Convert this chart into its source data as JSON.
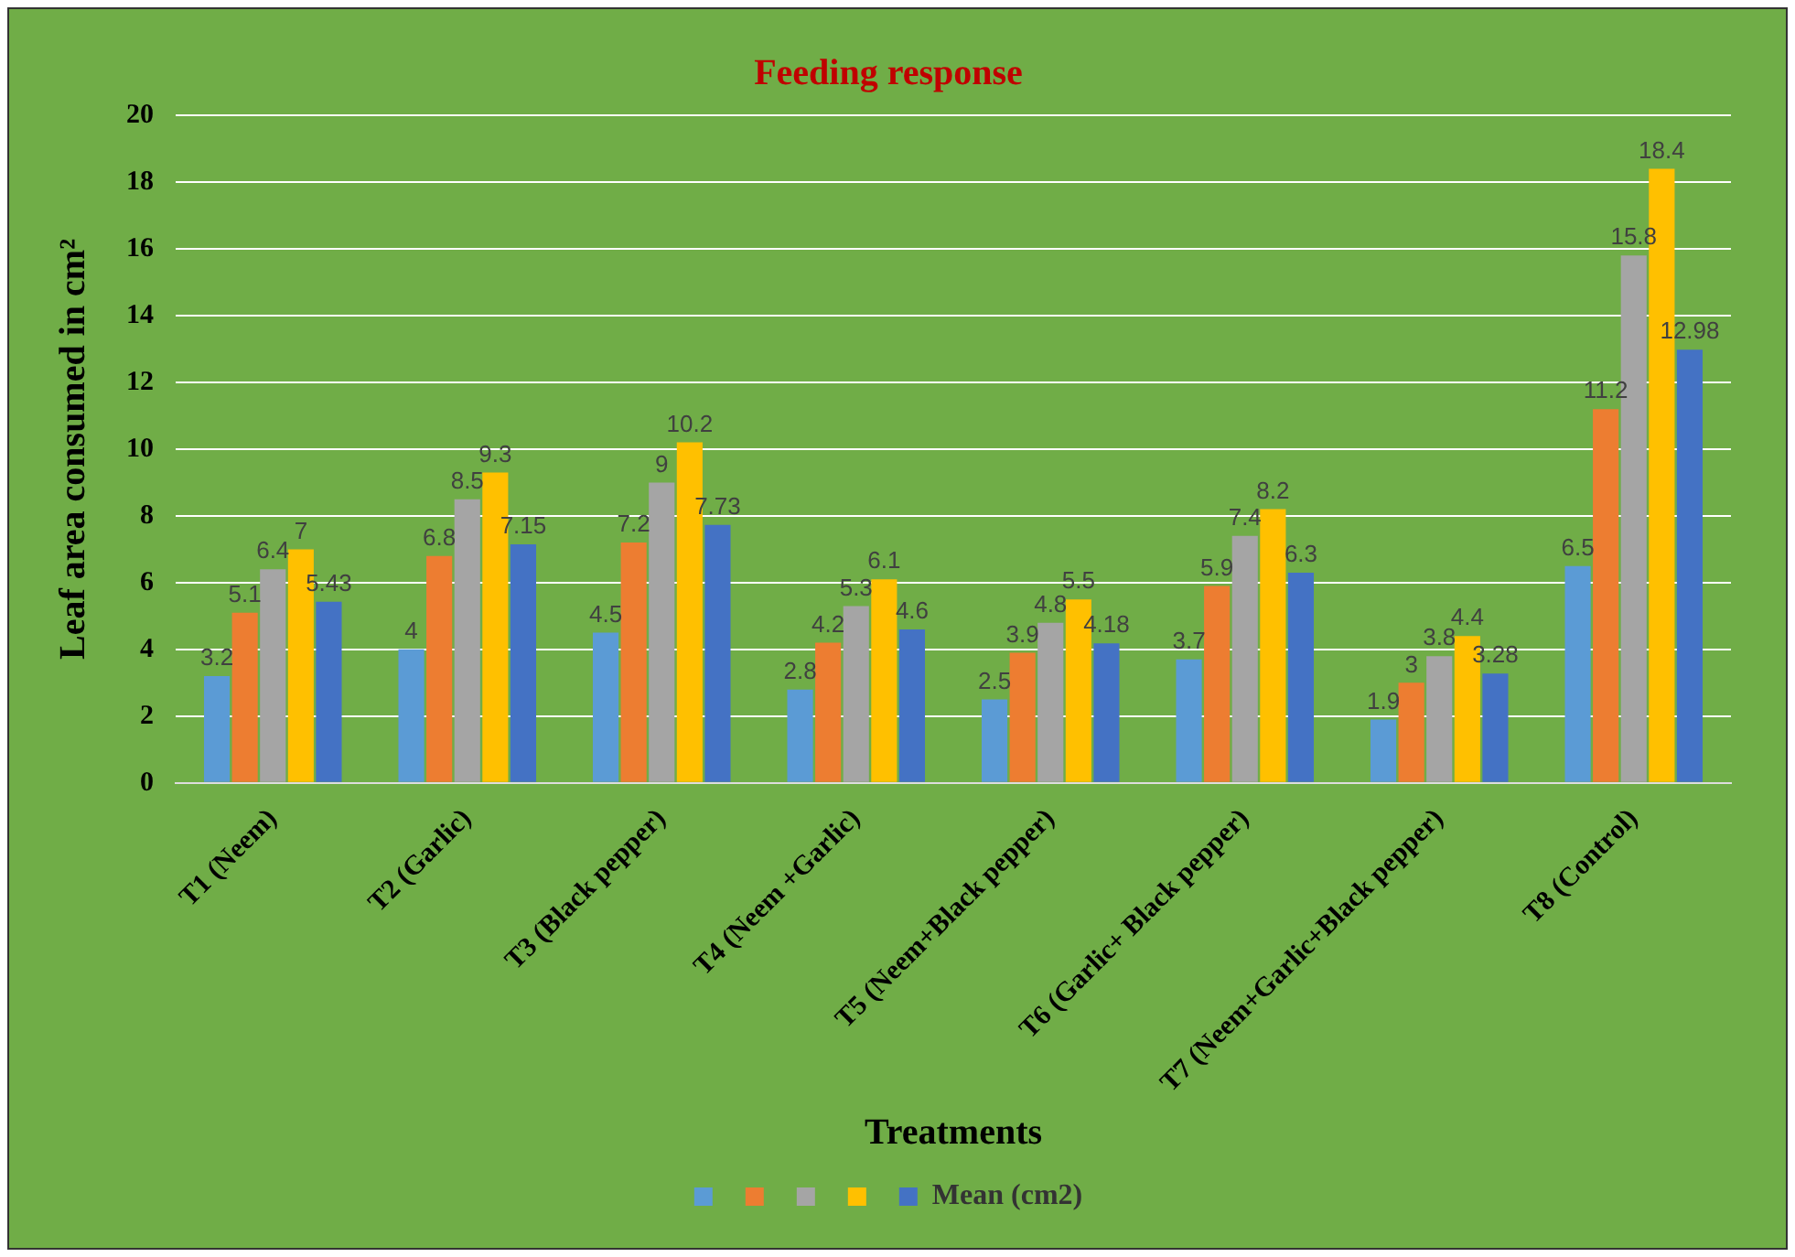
{
  "chart_data": {
    "type": "bar",
    "title": "Feeding response",
    "xlabel": "Treatments",
    "ylabel": "Leaf area consumed in cm²",
    "categories": [
      "T1 (Neem)",
      "T2 (Garlic)",
      "T3 (Black pepper)",
      "T4 (Neem +Garlic)",
      "T5 (Neem+Black pepper)",
      "T6 (Garlic+ Black pepper)",
      "T7 (Neem+Garlic+Black pepper)",
      "T8 (Control)"
    ],
    "series": [
      {
        "color": "#5b9bd5",
        "values": [
          3.2,
          4,
          4.5,
          2.8,
          2.5,
          3.7,
          1.9,
          6.5
        ]
      },
      {
        "color": "#ed7d31",
        "values": [
          5.1,
          6.8,
          7.2,
          4.2,
          3.9,
          5.9,
          3,
          11.2
        ]
      },
      {
        "color": "#a5a5a5",
        "values": [
          6.4,
          8.5,
          9,
          5.3,
          4.8,
          7.4,
          3.8,
          15.8
        ]
      },
      {
        "color": "#ffc000",
        "values": [
          7,
          9.3,
          10.2,
          6.1,
          5.5,
          8.2,
          4.4,
          18.4
        ]
      },
      {
        "name": "Mean (cm2)",
        "color": "#4472c4",
        "values": [
          5.43,
          7.15,
          7.73,
          4.6,
          4.18,
          6.3,
          3.28,
          12.98
        ]
      }
    ],
    "ylim": [
      0,
      20
    ],
    "yticks": [
      0,
      2,
      4,
      6,
      8,
      10,
      12,
      14,
      16,
      18,
      20
    ],
    "grid": "y",
    "legend": "bottom",
    "data_labels": true
  }
}
